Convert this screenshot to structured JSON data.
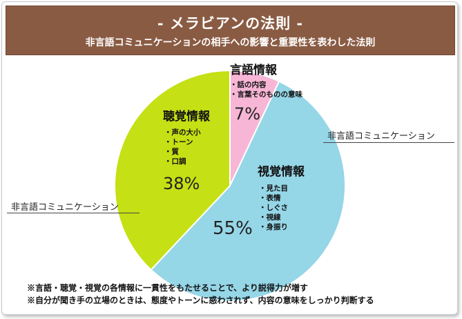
{
  "header": {
    "title": "- メラビアンの法則 -",
    "subtitle": "非言語コミュニケーションの相手への影響と重要性を表わした法則"
  },
  "chart_data": {
    "type": "pie",
    "slices": [
      {
        "label": "言語情報",
        "value": 7,
        "value_label": "7%",
        "color": "#f7b6d6",
        "items": [
          "話の内容",
          "言葉そのものの意味"
        ]
      },
      {
        "label": "視覚情報",
        "value": 55,
        "value_label": "55%",
        "color": "#95d6e7",
        "items": [
          "見た目",
          "表情",
          "しぐさ",
          "視線",
          "身振り"
        ]
      },
      {
        "label": "聴覚情報",
        "value": 38,
        "value_label": "38%",
        "color": "#c5e014",
        "items": [
          "声の大小",
          "トーン",
          "質",
          "口調"
        ]
      }
    ],
    "annotations": [
      "非言語コミュニケーション",
      "非言語コミュニケーション"
    ]
  },
  "notes": [
    "※言語・聴覚・視覚の各情報に一貫性をもたせることで、より説得力が増す",
    "※自分が聞き手の立場のときは、態度やトーンに惑わされず、内容の意味をしっかり判断する"
  ]
}
